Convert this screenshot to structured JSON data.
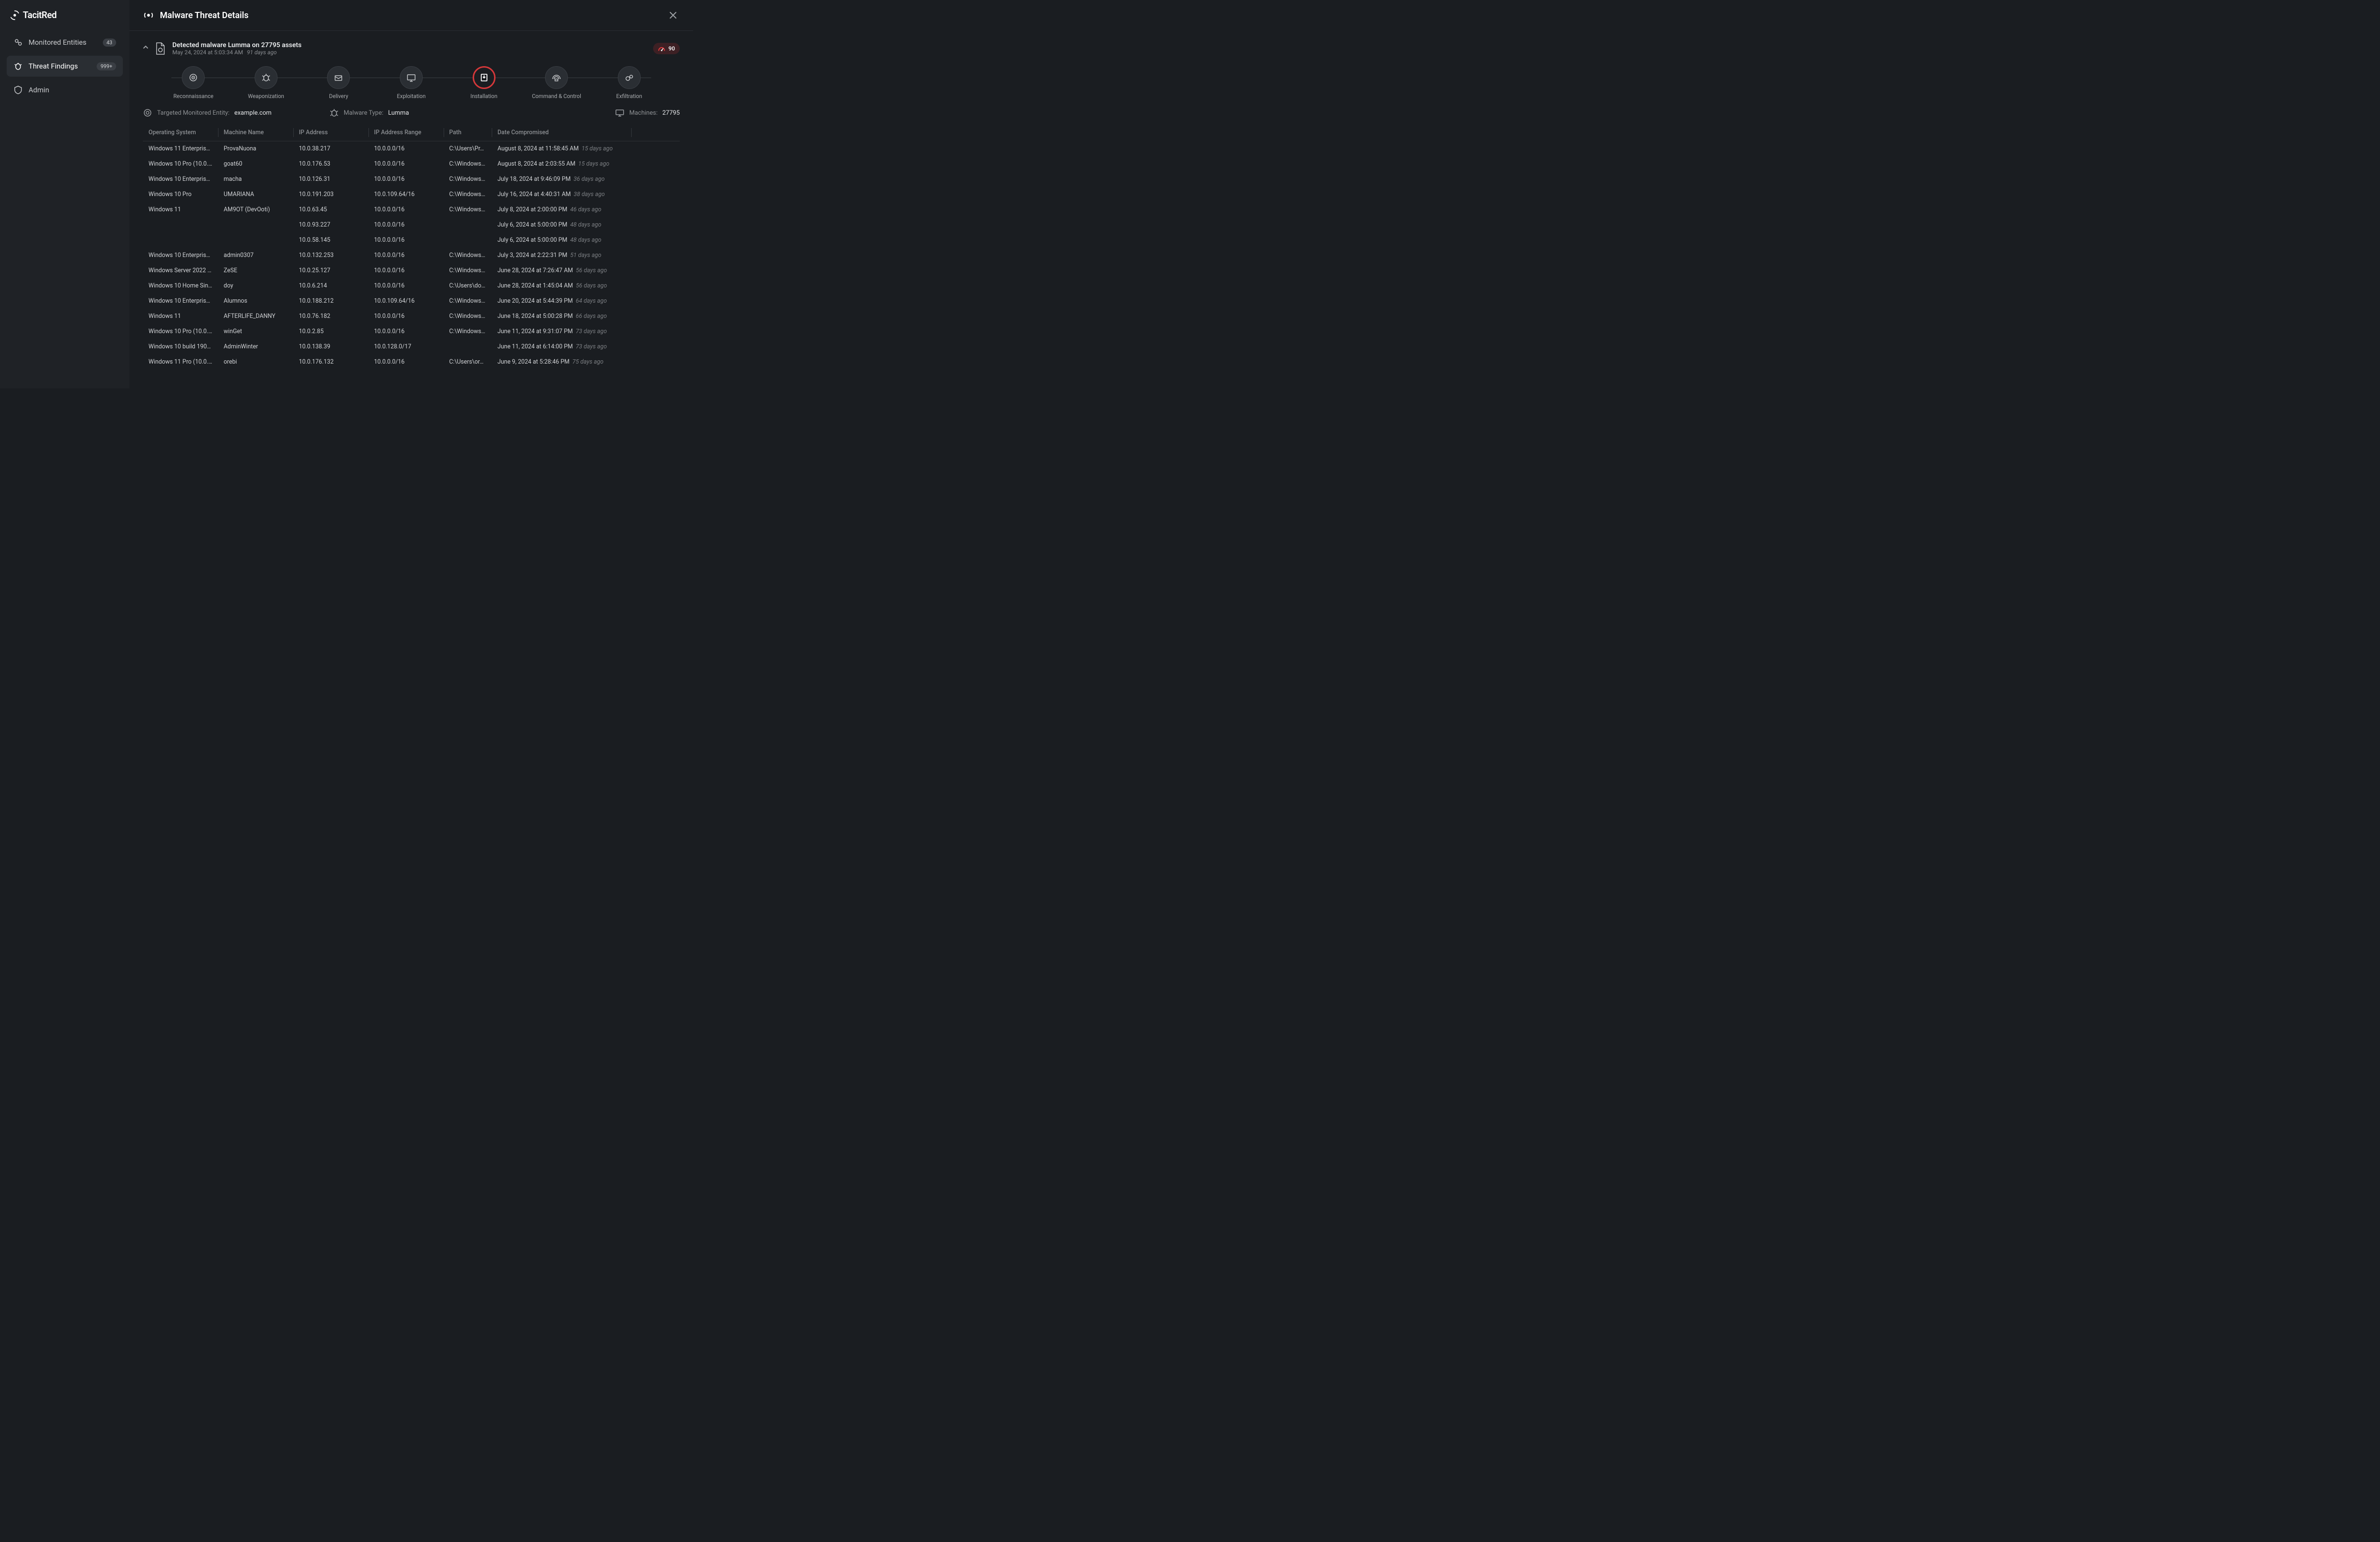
{
  "brand": {
    "name": "TacitRed"
  },
  "sidebar": {
    "items": [
      {
        "label": "Monitored Entities",
        "badge": "43",
        "icon": "entities"
      },
      {
        "label": "Threat Findings",
        "badge": "999+",
        "icon": "findings",
        "active": true
      },
      {
        "label": "Admin",
        "icon": "admin"
      }
    ]
  },
  "modal": {
    "title": "Malware Threat Details",
    "detection": {
      "headline": "Detected malware Lumma on 27795 assets",
      "timestamp": "May 24, 2024 at 5:03:34 AM",
      "ago": "91 days ago",
      "risk_score": "90"
    },
    "killchain": [
      {
        "label": "Reconnaissance",
        "icon": "recon"
      },
      {
        "label": "Weaponization",
        "icon": "weapon"
      },
      {
        "label": "Delivery",
        "icon": "delivery"
      },
      {
        "label": "Exploitation",
        "icon": "exploit"
      },
      {
        "label": "Installation",
        "icon": "install",
        "active": true
      },
      {
        "label": "Command & Control",
        "icon": "c2"
      },
      {
        "label": "Exfiltration",
        "icon": "exfil"
      }
    ],
    "meta": {
      "entity_label": "Targeted Monitored Entity:",
      "entity_value": "example.com",
      "type_label": "Malware Type:",
      "type_value": "Lumma",
      "machines_label": "Machines:",
      "machines_value": "27795"
    },
    "table": {
      "columns": [
        "Operating System",
        "Machine Name",
        "IP Address",
        "IP Address Range",
        "Path",
        "Date Compromised"
      ],
      "rows": [
        {
          "os": "Windows 11 Enterpris…",
          "machine": "ProvaNuona",
          "ip": "10.0.38.217",
          "range": "10.0.0.0/16",
          "path": "C:\\Users\\Pr…",
          "date": "August 8, 2024 at 11:58:45 AM",
          "ago": "15 days ago"
        },
        {
          "os": "Windows 10 Pro (10.0.…",
          "machine": "goat60",
          "ip": "10.0.176.53",
          "range": "10.0.0.0/16",
          "path": "C:\\Windows…",
          "date": "August 8, 2024 at 2:03:55 AM",
          "ago": "15 days ago"
        },
        {
          "os": "Windows 10 Enterpris…",
          "machine": "macha",
          "ip": "10.0.126.31",
          "range": "10.0.0.0/16",
          "path": "C:\\Windows…",
          "date": "July 18, 2024 at 9:46:09 PM",
          "ago": "36 days ago"
        },
        {
          "os": "Windows 10 Pro",
          "machine": "UMARIANA",
          "ip": "10.0.191.203",
          "range": "10.0.109.64/16",
          "path": "C:\\Windows…",
          "date": "July 16, 2024 at 4:40:31 AM",
          "ago": "38 days ago"
        },
        {
          "os": "Windows 11",
          "machine": "AM9OT (DevOoti)",
          "ip": "10.0.63.45",
          "range": "10.0.0.0/16",
          "path": "C:\\Windows…",
          "date": "July 8, 2024 at 2:00:00 PM",
          "ago": "46 days ago"
        },
        {
          "os": "",
          "machine": "",
          "ip": "10.0.93.227",
          "range": "10.0.0.0/16",
          "path": "",
          "date": "July 6, 2024 at 5:00:00 PM",
          "ago": "48 days ago"
        },
        {
          "os": "",
          "machine": "",
          "ip": "10.0.58.145",
          "range": "10.0.0.0/16",
          "path": "",
          "date": "July 6, 2024 at 5:00:00 PM",
          "ago": "48 days ago"
        },
        {
          "os": "Windows 10 Enterpris…",
          "machine": "admin0307",
          "ip": "10.0.132.253",
          "range": "10.0.0.0/16",
          "path": "C:\\Windows…",
          "date": "July 3, 2024 at 2:22:31 PM",
          "ago": "51 days ago"
        },
        {
          "os": "Windows Server 2022 …",
          "machine": "ZeSE",
          "ip": "10.0.25.127",
          "range": "10.0.0.0/16",
          "path": "C:\\Windows…",
          "date": "June 28, 2024 at 7:26:47 AM",
          "ago": "56 days ago"
        },
        {
          "os": "Windows 10 Home Sin…",
          "machine": "doy",
          "ip": "10.0.6.214",
          "range": "10.0.0.0/16",
          "path": "C:\\Users\\do…",
          "date": "June 28, 2024 at 1:45:04 AM",
          "ago": "56 days ago"
        },
        {
          "os": "Windows 10 Enterpris…",
          "machine": "Alumnos",
          "ip": "10.0.188.212",
          "range": "10.0.109.64/16",
          "path": "C:\\Windows…",
          "date": "June 20, 2024 at 5:44:39 PM",
          "ago": "64 days ago"
        },
        {
          "os": "Windows 11",
          "machine": "AFTERLIFE_DANNY",
          "ip": "10.0.76.182",
          "range": "10.0.0.0/16",
          "path": "C:\\Windows…",
          "date": "June 18, 2024 at 5:00:28 PM",
          "ago": "66 days ago"
        },
        {
          "os": "Windows 10 Pro (10.0.…",
          "machine": "winGet",
          "ip": "10.0.2.85",
          "range": "10.0.0.0/16",
          "path": "C:\\Windows…",
          "date": "June 11, 2024 at 9:31:07 PM",
          "ago": "73 days ago"
        },
        {
          "os": "Windows 10 build 190…",
          "machine": "AdminWinter",
          "ip": "10.0.138.39",
          "range": "10.0.128.0/17",
          "path": "",
          "date": "June 11, 2024 at 6:14:00 PM",
          "ago": "73 days ago"
        },
        {
          "os": "Windows 11 Pro (10.0.…",
          "machine": "orebi",
          "ip": "10.0.176.132",
          "range": "10.0.0.0/16",
          "path": "C:\\Users\\or…",
          "date": "June 9, 2024 at 5:28:46 PM",
          "ago": "75 days ago"
        }
      ]
    }
  },
  "colors": {
    "bg": "#1a1d21",
    "sidebar_bg": "#1f2226",
    "active_bg": "#2a2e33",
    "border": "#2e3237",
    "accent": "#d6383a",
    "text_muted": "#8a8d91"
  }
}
